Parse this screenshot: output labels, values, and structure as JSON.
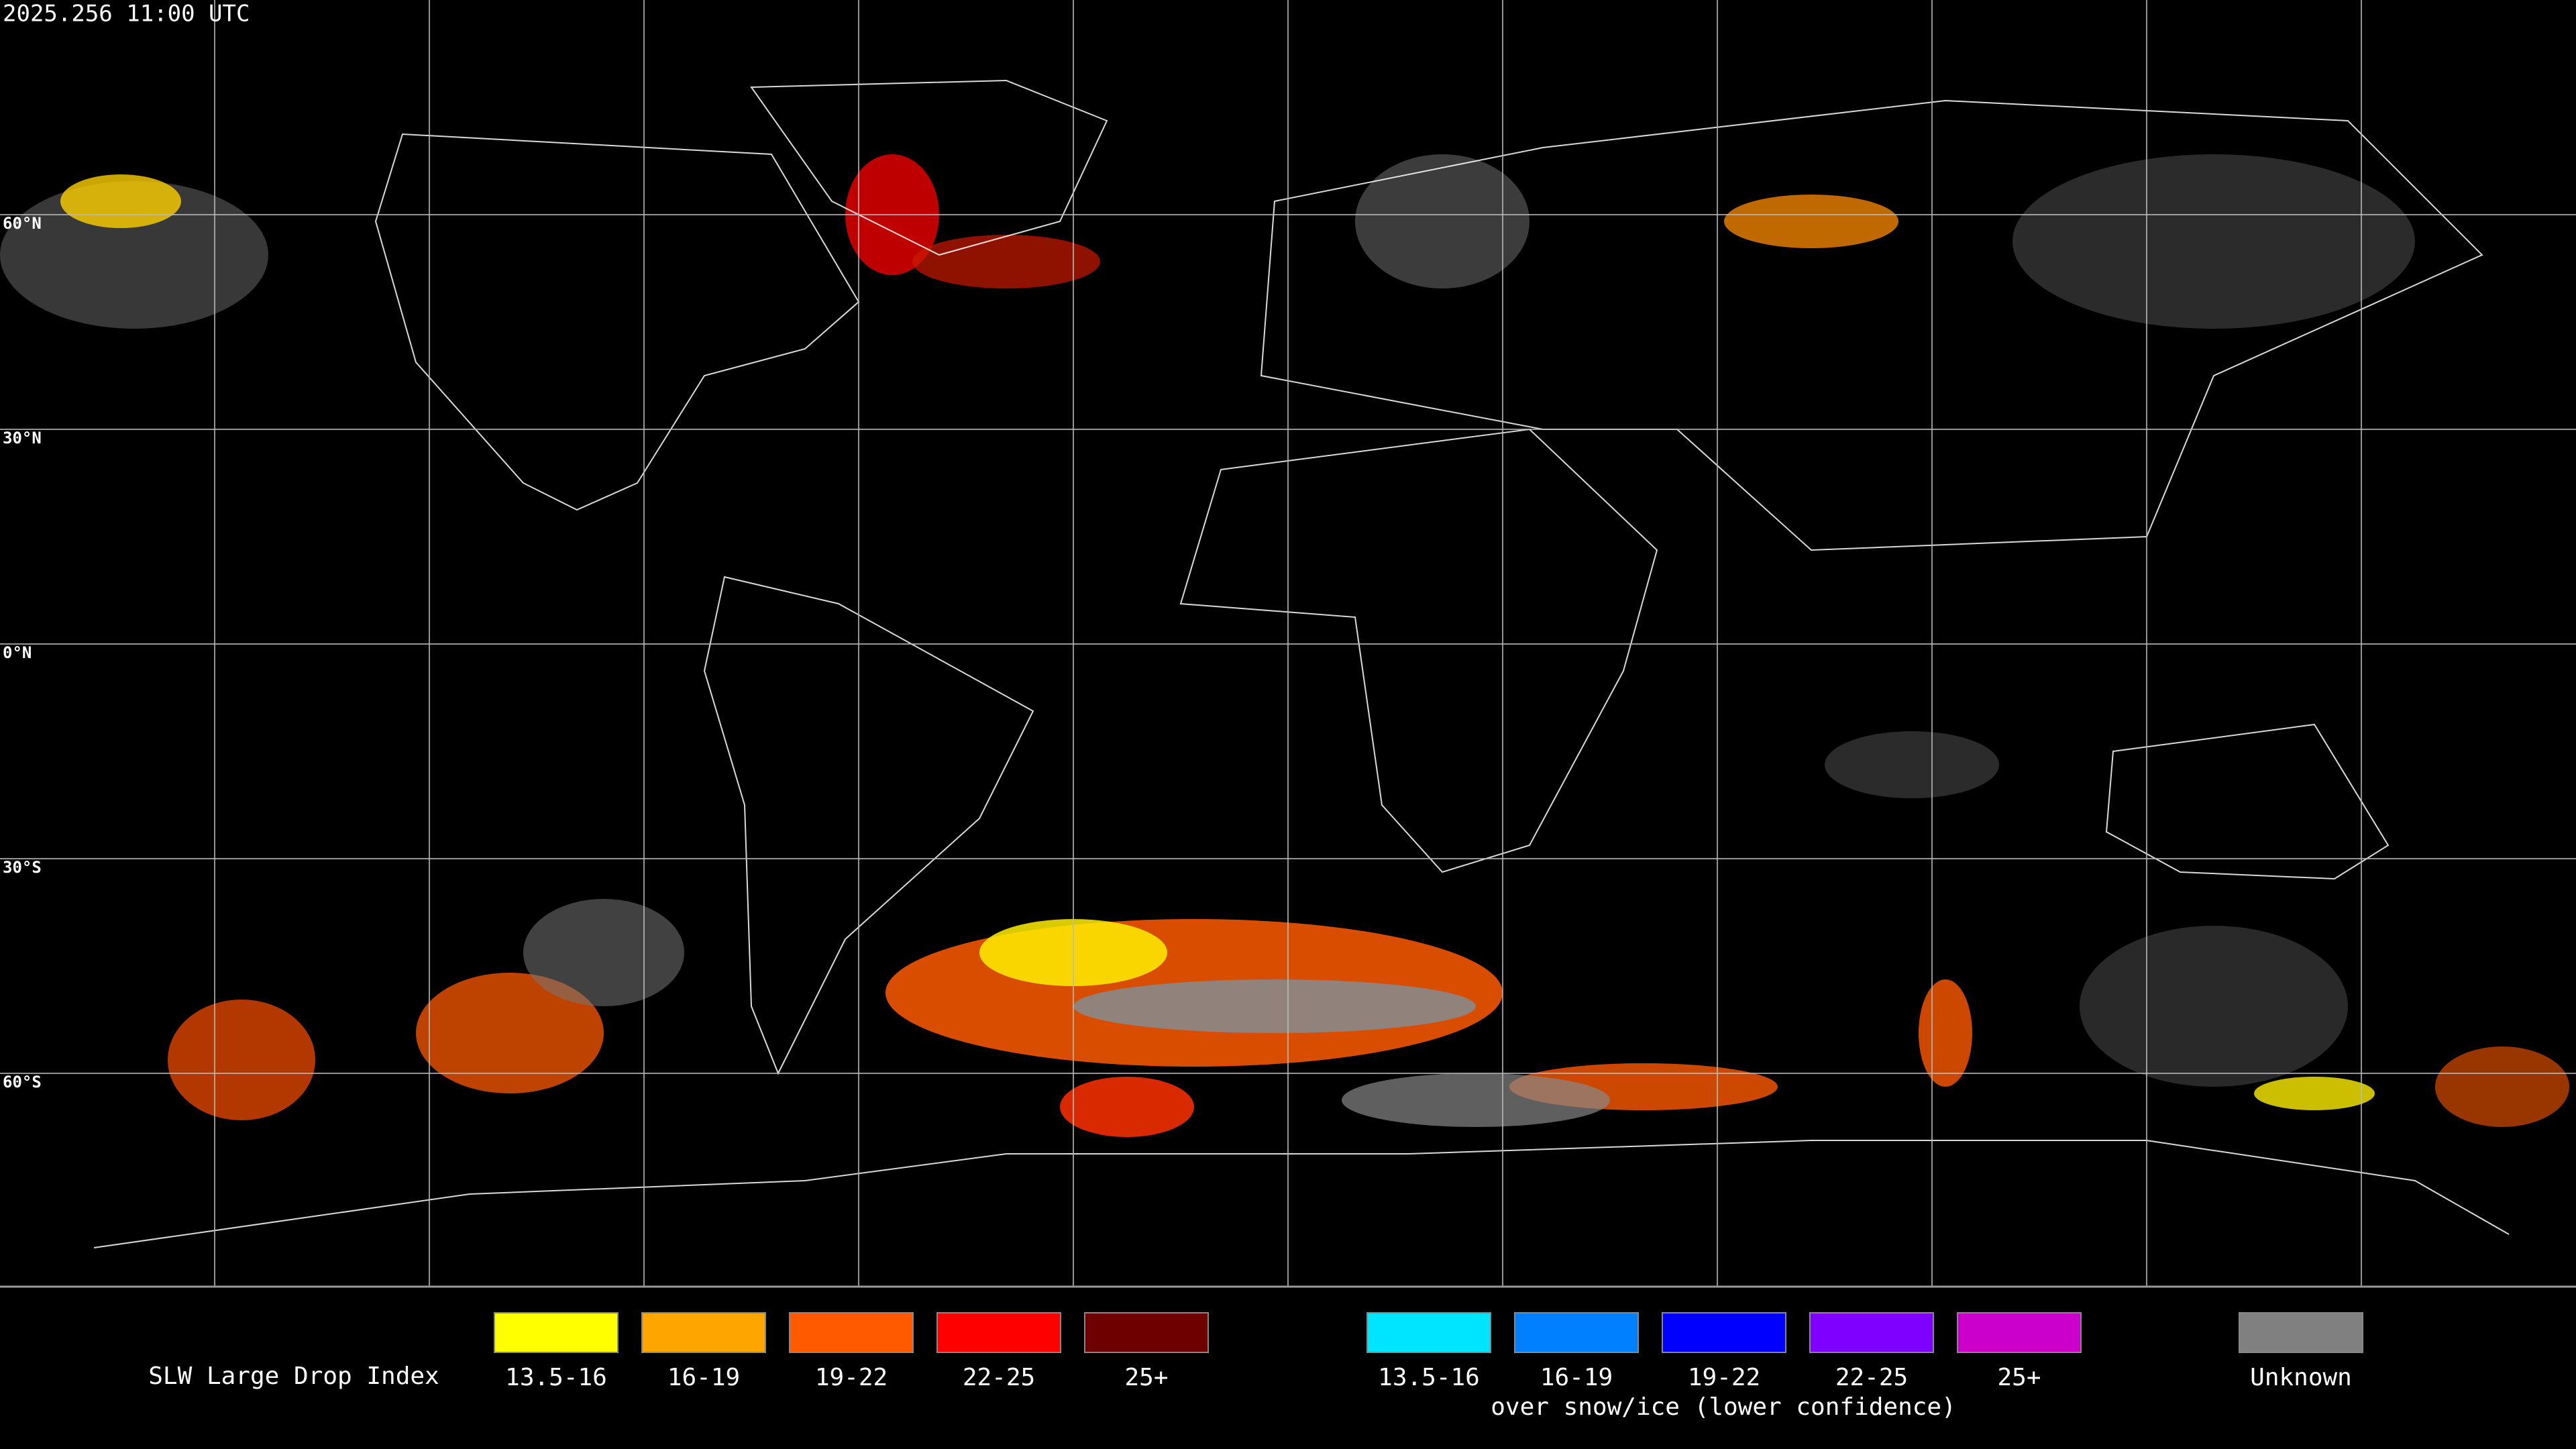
{
  "header": {
    "timestamp": "2025.256 11:00 UTC"
  },
  "map": {
    "latitude_labels": [
      "60°N",
      "30°N",
      "0°N",
      "30°S",
      "60°S"
    ]
  },
  "legend": {
    "title": "SLW Large Drop Index",
    "groups": [
      {
        "items": [
          {
            "label": "13.5-16",
            "color": "#ffff00"
          },
          {
            "label": "16-19",
            "color": "#ffa500"
          },
          {
            "label": "19-22",
            "color": "#ff5a00"
          },
          {
            "label": "22-25",
            "color": "#ff0000"
          },
          {
            "label": "25+",
            "color": "#6e0000"
          }
        ]
      },
      {
        "items": [
          {
            "label": "13.5-16",
            "color": "#00e5ff"
          },
          {
            "label": "16-19",
            "color": "#0080ff"
          },
          {
            "label": "19-22",
            "color": "#0000ff"
          },
          {
            "label": "22-25",
            "color": "#8000ff"
          },
          {
            "label": "25+",
            "color": "#cc00cc"
          }
        ]
      }
    ],
    "snow_ice_note": "over snow/ice (lower confidence)",
    "unknown": {
      "label": "Unknown",
      "color": "#808080"
    }
  }
}
